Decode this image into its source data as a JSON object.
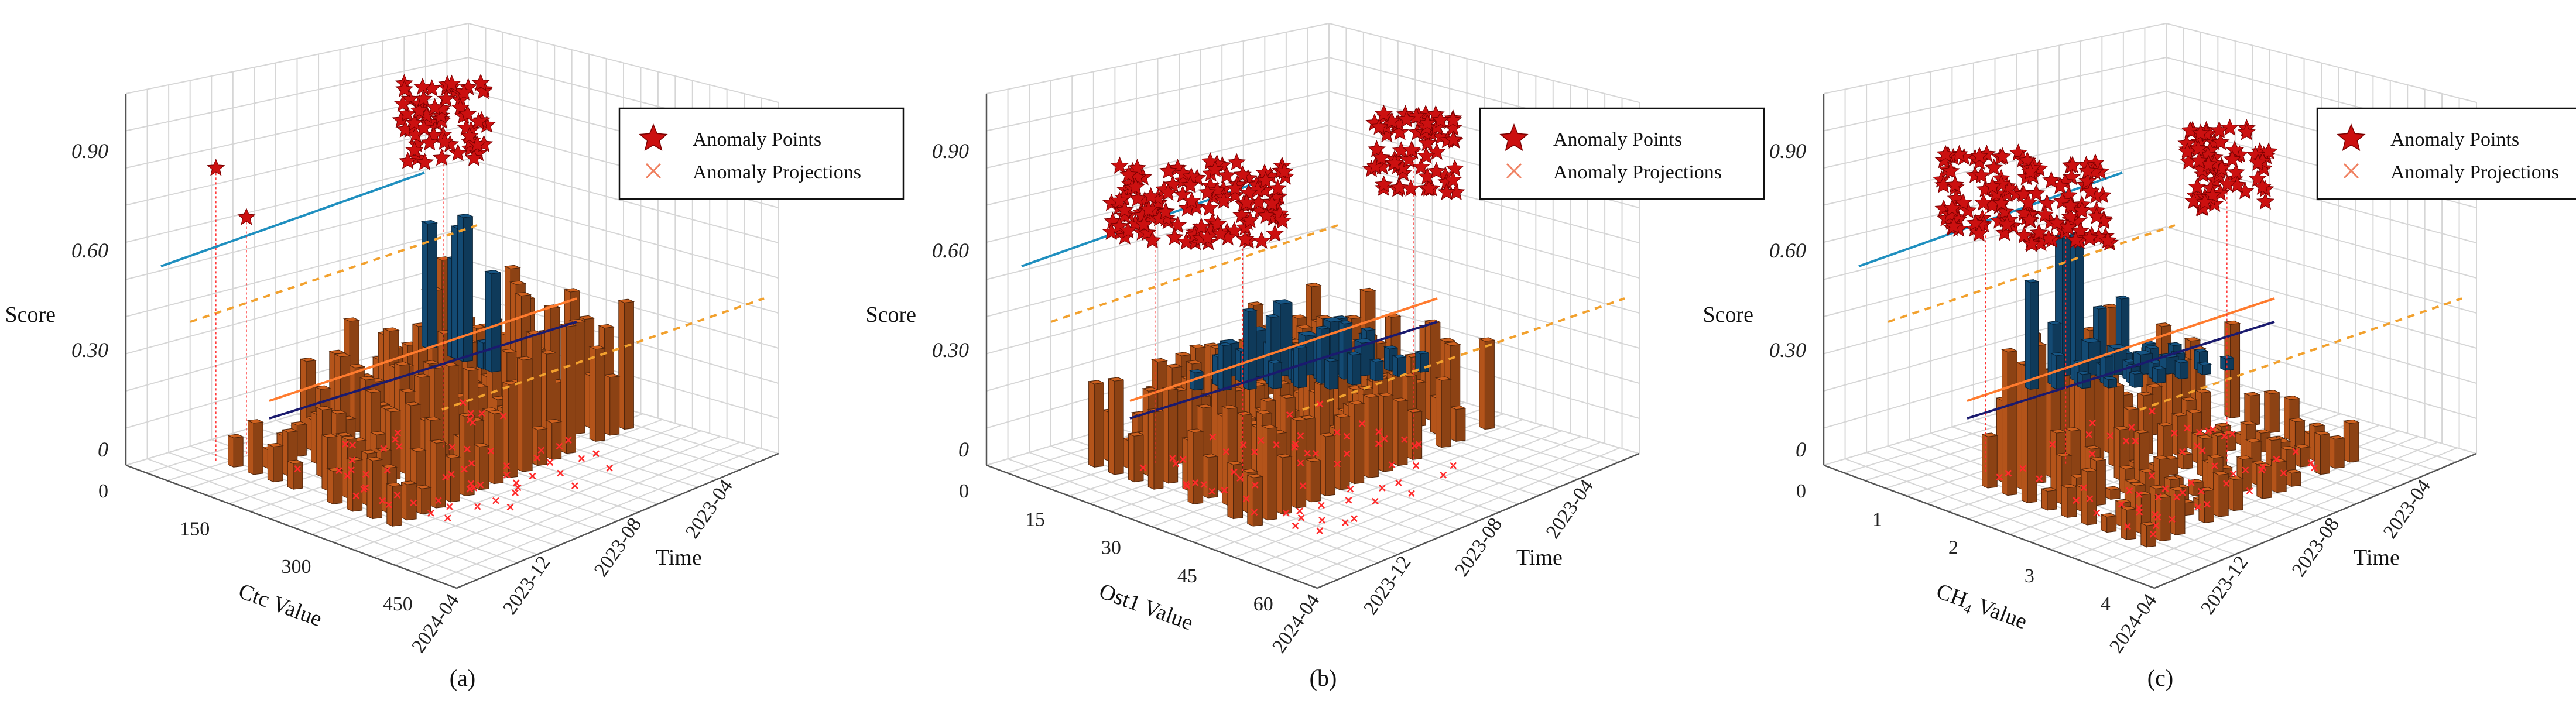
{
  "figure": {
    "colors": {
      "bar_blue": "#134a73",
      "bar_orange": "#b4541a",
      "anomaly": "#cc1010",
      "projection": "#ff2a2a",
      "trend_cyan": "#1f8fbf",
      "trend_orange": "#ff7b2e",
      "trend_navy": "#1a1a6e",
      "trend_dashed": "#f2a12e",
      "grid": "#d6d6d6"
    }
  },
  "chart_data": [
    {
      "type": "3d-bar-scatter",
      "panel_label": "(a)",
      "xlabel": "Ctc Value",
      "ylabel": "Time",
      "zlabel": "Score",
      "x_ticks": [
        "0",
        "150",
        "300",
        "450"
      ],
      "x_range": [
        0,
        500
      ],
      "y_ticks": [
        "2024-04",
        "2023-12",
        "2023-08",
        "2023-04"
      ],
      "z_ticks": [
        "0",
        "0.30",
        "0.60",
        "0.90"
      ],
      "z_range": [
        0,
        1.0
      ],
      "legend": [
        "Anomaly Points",
        "Anomaly Projections"
      ],
      "blue_bars": [
        {
          "x": 30,
          "z": 0.38
        },
        {
          "x": 95,
          "z": 0.3
        },
        {
          "x": 105,
          "z": 0.4
        },
        {
          "x": 120,
          "z": 0.44
        },
        {
          "x": 170,
          "z": 0.08
        },
        {
          "x": 190,
          "z": 0.3
        }
      ],
      "anomaly_summary": [
        {
          "x": 85,
          "t": 0.2,
          "z": 0.9
        },
        {
          "x": 100,
          "t": 0.3,
          "z": 0.73
        },
        {
          "x": 280,
          "t": 0.75,
          "z": 1.0
        }
      ]
    },
    {
      "type": "3d-bar-scatter",
      "panel_label": "(b)",
      "xlabel": "Ost1 Value",
      "ylabel": "Time",
      "zlabel": "Score",
      "x_ticks": [
        "0",
        "15",
        "30",
        "45",
        "60"
      ],
      "x_range": [
        0,
        65
      ],
      "y_ticks": [
        "2024-04",
        "2023-12",
        "2023-08",
        "2023-04"
      ],
      "z_ticks": [
        "0",
        "0.30",
        "0.60",
        "0.90"
      ],
      "z_range": [
        0,
        1.0
      ],
      "legend": [
        "Anomaly Points",
        "Anomaly Projections"
      ],
      "blue_bars": [
        {
          "x": 5,
          "z": 0.1
        },
        {
          "x": 10,
          "z": 0.14
        },
        {
          "x": 14,
          "z": 0.22
        },
        {
          "x": 18,
          "z": 0.12
        },
        {
          "x": 22,
          "z": 0.16
        },
        {
          "x": 28,
          "z": 0.1
        }
      ],
      "anomaly_summary": [
        {
          "x": 22,
          "t": 0.35,
          "z": 0.8
        },
        {
          "x": 38,
          "t": 0.45,
          "z": 0.85
        },
        {
          "x": 55,
          "t": 0.9,
          "z": 0.95
        }
      ]
    },
    {
      "type": "3d-bar-scatter",
      "panel_label": "(c)",
      "xlabel": "CH₄ Value",
      "ylabel": "Time",
      "zlabel": "Score",
      "x_ticks": [
        "0",
        "1",
        "2",
        "3",
        "4"
      ],
      "x_range": [
        0,
        4.5
      ],
      "y_ticks": [
        "2024-04",
        "2023-12",
        "2023-08",
        "2023-04"
      ],
      "z_ticks": [
        "0",
        "0.30",
        "0.60",
        "0.90"
      ],
      "z_range": [
        0,
        1.0
      ],
      "legend": [
        "Anomaly Points",
        "Anomaly Projections"
      ],
      "blue_bars": [
        {
          "x": 0.3,
          "z": 0.42
        },
        {
          "x": 0.6,
          "z": 0.1
        },
        {
          "x": 0.9,
          "z": 0.08
        },
        {
          "x": 1.2,
          "z": 0.06
        },
        {
          "x": 1.5,
          "z": 0.05
        }
      ],
      "anomaly_summary": [
        {
          "x": 1.6,
          "t": 0.3,
          "z": 0.85
        },
        {
          "x": 2.2,
          "t": 0.5,
          "z": 0.8
        },
        {
          "x": 3.6,
          "t": 0.85,
          "z": 0.9
        }
      ]
    }
  ]
}
